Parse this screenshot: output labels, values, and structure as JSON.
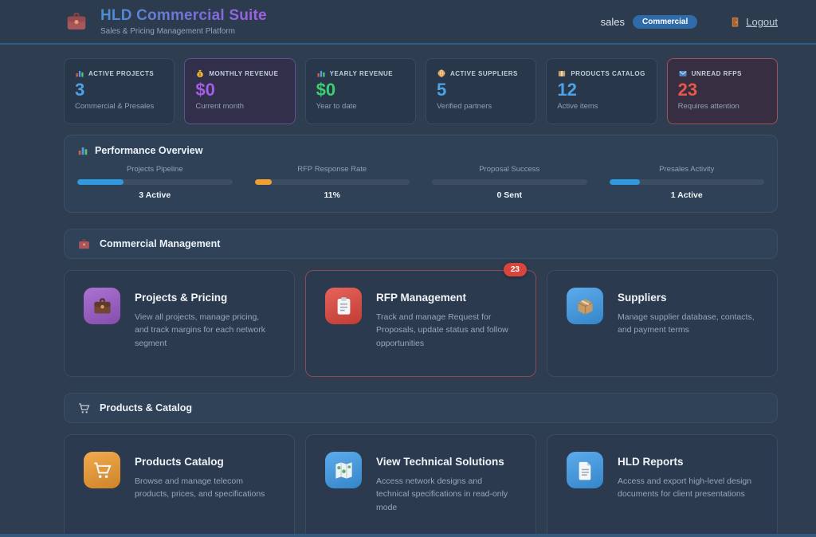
{
  "theme": {
    "background": "#2e3d4f",
    "accent_blue": "#4da3e8",
    "accent_purple": "#a45ee5",
    "accent_green": "#3ecf6e",
    "accent_red": "#e8574a",
    "badge_blue": "#2f6ba8"
  },
  "header": {
    "title": "HLD Commercial Suite",
    "subtitle": "Sales & Pricing Management Platform",
    "logo_icon": "briefcase-icon",
    "username": "sales",
    "role_badge": "Commercial",
    "logout_label": "Logout",
    "logout_icon": "door-icon"
  },
  "stats": [
    {
      "label": "ACTIVE PROJECTS",
      "icon": "bar-chart-icon",
      "value": "3",
      "sub": "Commercial & Presales",
      "value_color": "#4da3e8"
    },
    {
      "label": "MONTHLY REVENUE",
      "icon": "money-bag-icon",
      "value": "$0",
      "sub": "Current month",
      "value_color": "#a45ee5"
    },
    {
      "label": "YEARLY REVENUE",
      "icon": "bar-chart-icon",
      "value": "$0",
      "sub": "Year to date",
      "value_color": "#3ecf6e"
    },
    {
      "label": "ACTIVE SUPPLIERS",
      "icon": "globe-icon",
      "value": "5",
      "sub": "Verified partners",
      "value_color": "#4da3e8"
    },
    {
      "label": "PRODUCTS CATALOG",
      "icon": "package-icon",
      "value": "12",
      "sub": "Active items",
      "value_color": "#4da3e8"
    },
    {
      "label": "UNREAD RFPS",
      "icon": "mail-icon",
      "value": "23",
      "sub": "Requires attention",
      "value_color": "#e8574a"
    }
  ],
  "performance": {
    "title": "Performance Overview",
    "icon": "bar-chart-icon",
    "metrics": [
      {
        "label": "Projects Pipeline",
        "value_label": "3 Active",
        "percent": 30,
        "bar_color": "#2f9ae0"
      },
      {
        "label": "RFP Response Rate",
        "value_label": "11%",
        "percent": 11,
        "bar_color": "#f0a030"
      },
      {
        "label": "Proposal Success",
        "value_label": "0 Sent",
        "percent": 0,
        "bar_color": "#2f9ae0"
      },
      {
        "label": "Presales Activity",
        "value_label": "1 Active",
        "percent": 20,
        "bar_color": "#2f9ae0"
      }
    ]
  },
  "sections": [
    {
      "title": "Commercial Management",
      "icon": "briefcase-icon",
      "cards": [
        {
          "title": "Projects & Pricing",
          "icon": "briefcase-icon",
          "tile_color": "#9b59c8",
          "desc": "View all projects, manage pricing, and track margins for each network segment"
        },
        {
          "title": "RFP Management",
          "icon": "clipboard-icon",
          "tile_color": "#e0463c",
          "badge": "23",
          "desc": "Track and manage Request for Proposals, update status and follow opportunities"
        },
        {
          "title": "Suppliers",
          "icon": "package-icon",
          "tile_color": "#3d9be9",
          "desc": "Manage supplier database, contacts, and payment terms"
        }
      ]
    },
    {
      "title": "Products & Catalog",
      "icon": "cart-icon",
      "cards": [
        {
          "title": "Products Catalog",
          "icon": "cart-icon",
          "tile_color": "#f09a2e",
          "desc": "Browse and manage telecom products, prices, and specifications"
        },
        {
          "title": "View Technical Solutions",
          "icon": "map-icon",
          "tile_color": "#3d9be9",
          "desc": "Access network designs and technical specifications in read-only mode"
        },
        {
          "title": "HLD Reports",
          "icon": "document-icon",
          "tile_color": "#3d9be9",
          "desc": "Access and export high-level design documents for client presentations"
        }
      ]
    }
  ]
}
